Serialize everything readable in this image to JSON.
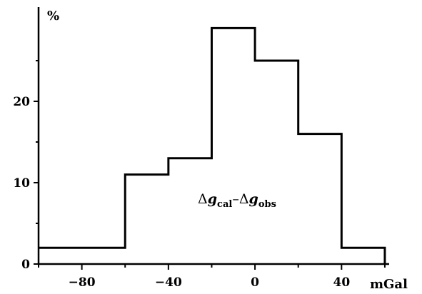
{
  "chart_data": {
    "type": "bar",
    "histogram": true,
    "bin_edges": [
      -100,
      -60,
      -40,
      -20,
      0,
      20,
      40,
      60
    ],
    "values": [
      2,
      11,
      13,
      29,
      25,
      16,
      2
    ],
    "xlim": [
      -100,
      62
    ],
    "ylim": [
      0,
      30
    ],
    "x_ticks": [
      -80,
      -40,
      0,
      40
    ],
    "x_tick_labels": [
      "−80",
      "−40",
      "0",
      "40"
    ],
    "y_ticks": [
      0,
      10,
      20
    ],
    "y_tick_labels": [
      "0",
      "10",
      "20"
    ],
    "xlabel": "mGal",
    "ylabel": "%",
    "annotation": {
      "delta1": "Δ",
      "g1": "g",
      "sub1": "cal",
      "dash": "–",
      "delta2": "Δ",
      "g2": "g",
      "sub2": "obs"
    },
    "grid": false
  }
}
